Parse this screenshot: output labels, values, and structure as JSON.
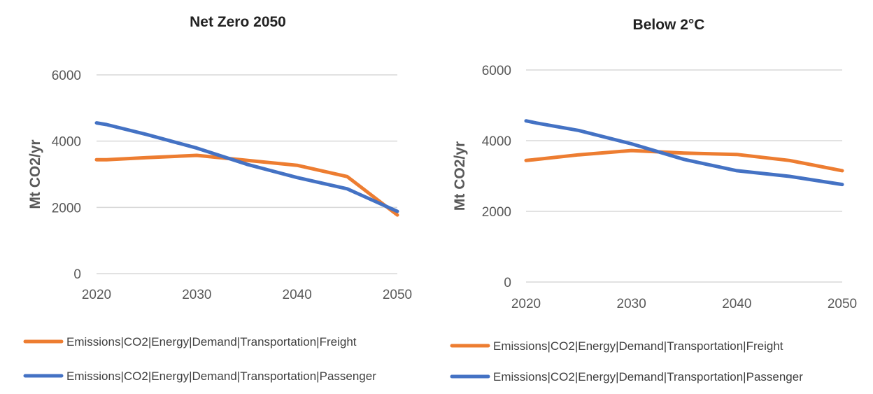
{
  "chart_data": [
    {
      "type": "line",
      "title": "Net Zero 2050",
      "xlabel": "",
      "ylabel": "Mt CO2/yr",
      "x": [
        2020,
        2021,
        2025,
        2030,
        2035,
        2040,
        2045,
        2050
      ],
      "xticks": [
        "2020",
        "2030",
        "2040",
        "2050"
      ],
      "yticks": [
        "0",
        "2000",
        "4000",
        "6000"
      ],
      "xlim": [
        2020,
        2050
      ],
      "ylim": [
        0,
        6000
      ],
      "grid": true,
      "legend_position": "bottom",
      "series": [
        {
          "name": "Emissions|CO2|Energy|Demand|Transportation|Freight",
          "color": "#ED7D31",
          "values": [
            3440,
            3440,
            3500,
            3570,
            3420,
            3270,
            2930,
            1770
          ]
        },
        {
          "name": "Emissions|CO2|Energy|Demand|Transportation|Passenger",
          "color": "#4472C4",
          "values": [
            4550,
            4500,
            4200,
            3790,
            3300,
            2900,
            2560,
            1880
          ]
        }
      ]
    },
    {
      "type": "line",
      "title": "Below 2°C",
      "xlabel": "",
      "ylabel": "Mt CO2/yr",
      "x": [
        2020,
        2021,
        2025,
        2030,
        2035,
        2040,
        2045,
        2050
      ],
      "xticks": [
        "2020",
        "2030",
        "2040",
        "2050"
      ],
      "yticks": [
        "0",
        "2000",
        "4000",
        "6000"
      ],
      "xlim": [
        2020,
        2050
      ],
      "ylim": [
        0,
        6000
      ],
      "grid": true,
      "legend_position": "bottom",
      "series": [
        {
          "name": "Emissions|CO2|Energy|Demand|Transportation|Freight",
          "color": "#ED7D31",
          "values": [
            3440,
            3470,
            3600,
            3720,
            3650,
            3610,
            3440,
            3150
          ]
        },
        {
          "name": "Emissions|CO2|Energy|Demand|Transportation|Passenger",
          "color": "#4472C4",
          "values": [
            4560,
            4500,
            4290,
            3910,
            3470,
            3150,
            2990,
            2760
          ]
        }
      ]
    }
  ]
}
